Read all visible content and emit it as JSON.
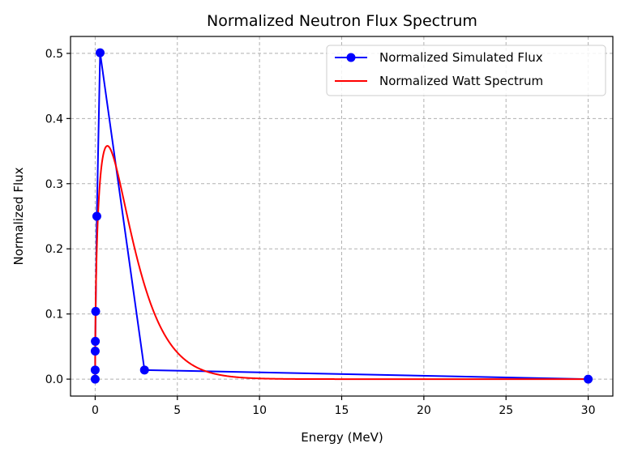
{
  "chart_data": {
    "type": "line",
    "title": "Normalized Neutron Flux Spectrum",
    "xlabel": "Energy (MeV)",
    "ylabel": "Normalized Flux",
    "xlim": [
      -1.5,
      31.5
    ],
    "ylim": [
      -0.026,
      0.526
    ],
    "xticks": [
      0,
      5,
      10,
      15,
      20,
      25,
      30
    ],
    "xtick_labels": [
      "0",
      "5",
      "10",
      "15",
      "20",
      "25",
      "30"
    ],
    "yticks": [
      0.0,
      0.1,
      0.2,
      0.3,
      0.4,
      0.5
    ],
    "ytick_labels": [
      "0.0",
      "0.1",
      "0.2",
      "0.3",
      "0.4",
      "0.5"
    ],
    "grid": true,
    "legend_position": "top-right",
    "series": [
      {
        "name": "Normalized Simulated Flux",
        "color": "#0000ff",
        "marker": "circle",
        "points": [
          [
            0.0,
            0.0
          ],
          [
            0.0,
            0.014
          ],
          [
            0.001,
            0.043
          ],
          [
            0.01,
            0.058
          ],
          [
            0.03,
            0.104
          ],
          [
            0.1,
            0.25
          ],
          [
            0.3,
            0.501
          ],
          [
            3.0,
            0.014
          ],
          [
            30.0,
            0.0
          ]
        ]
      },
      {
        "name": "Normalized Watt Spectrum",
        "color": "#ff0000",
        "marker": "none",
        "function": "watt",
        "a": 0.988,
        "b": 2.249,
        "peak_value": 0.358,
        "x_range": [
          0.0,
          30.0
        ]
      }
    ]
  }
}
